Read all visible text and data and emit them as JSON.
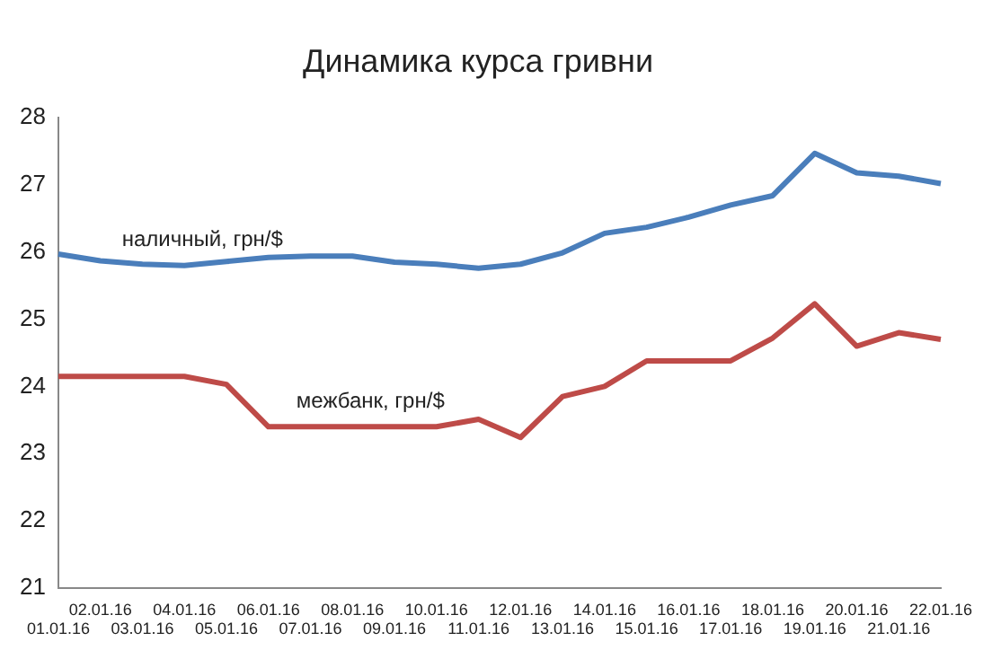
{
  "chart_data": {
    "type": "line",
    "title": "Динамика курса гривни",
    "categories": [
      "01.01.16",
      "02.01.16",
      "03.01.16",
      "04.01.16",
      "05.01.16",
      "06.01.16",
      "07.01.16",
      "08.01.16",
      "09.01.16",
      "10.01.16",
      "11.01.16",
      "12.01.16",
      "13.01.16",
      "14.01.16",
      "15.01.16",
      "16.01.16",
      "17.01.16",
      "18.01.16",
      "19.01.16",
      "20.01.16",
      "21.01.16",
      "22.01.16"
    ],
    "series": [
      {
        "name": "наличный, грн/$",
        "color": "#4a7ebb",
        "values": [
          25.97,
          25.87,
          25.82,
          25.8,
          25.86,
          25.92,
          25.94,
          25.94,
          25.85,
          25.82,
          25.76,
          25.82,
          25.99,
          26.28,
          26.37,
          26.52,
          26.7,
          26.84,
          27.47,
          27.18,
          27.13,
          27.02
        ]
      },
      {
        "name": "межбанк, грн/$",
        "color": "#be4b48",
        "values": [
          24.15,
          24.15,
          24.15,
          24.15,
          24.03,
          23.4,
          23.4,
          23.4,
          23.4,
          23.4,
          23.51,
          23.24,
          23.85,
          24.0,
          24.38,
          24.38,
          24.38,
          24.72,
          25.23,
          24.6,
          24.8,
          24.7
        ]
      }
    ],
    "ylim": [
      21,
      28
    ],
    "yticks": [
      21,
      22,
      23,
      24,
      25,
      26,
      27,
      28
    ],
    "grid": false,
    "legend": false,
    "marker": "none",
    "line_style": "solid"
  }
}
